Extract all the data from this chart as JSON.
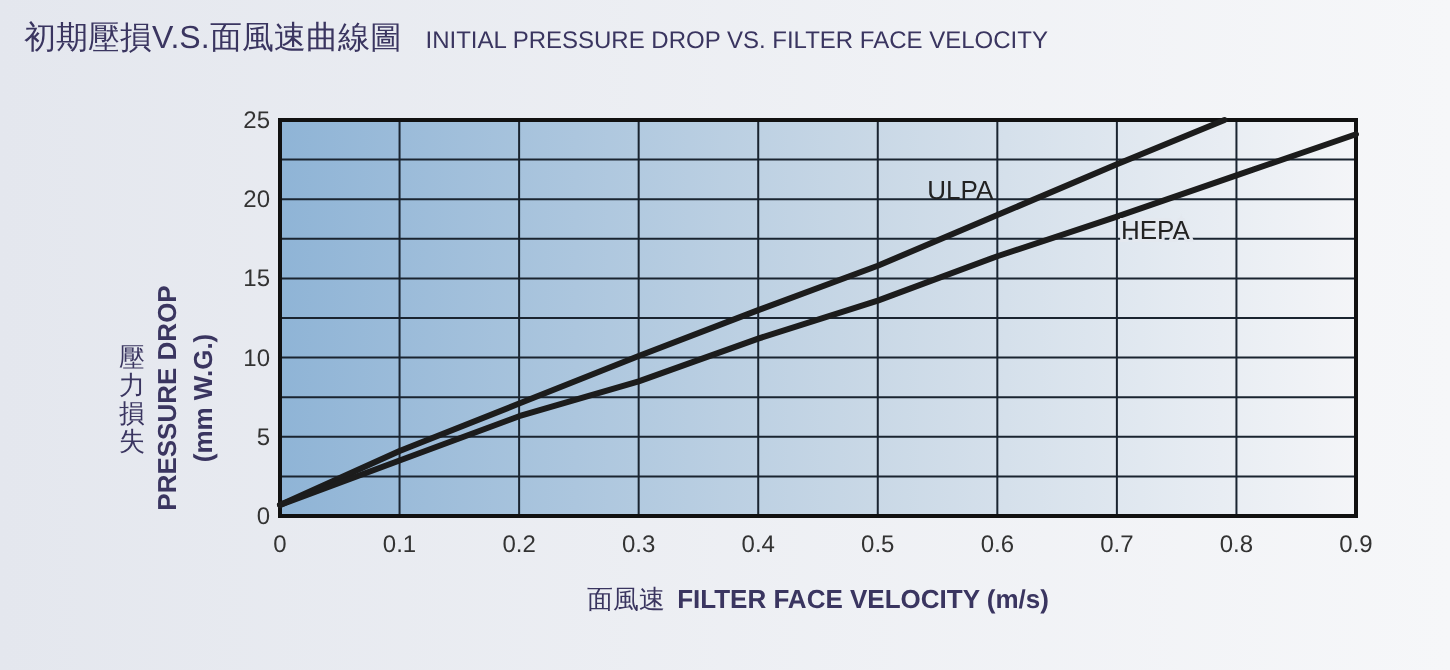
{
  "chart_data": {
    "type": "line",
    "title": "初期壓損V.S.面風速曲線圖",
    "subtitle": "INITIAL PRESSURE DROP VS. FILTER FACE VELOCITY",
    "xlabel": "面風速 FILTER FACE VELOCITY (m/s)",
    "ylabel": "壓力損失 PRESSURE DROP (mm W.G.)",
    "series": [
      {
        "name": "ULPA",
        "color": "#1c1c1c",
        "x": [
          0,
          0.1,
          0.2,
          0.3,
          0.4,
          0.5,
          0.6,
          0.7,
          0.79
        ],
        "values": [
          0.7,
          4.1,
          7.1,
          10.1,
          13,
          15.8,
          19,
          22.2,
          25
        ]
      },
      {
        "name": "HEPA",
        "color": "#1c1c1c",
        "x": [
          0,
          0.1,
          0.2,
          0.3,
          0.4,
          0.5,
          0.6,
          0.7,
          0.8,
          0.9
        ],
        "values": [
          0.7,
          3.5,
          6.3,
          8.5,
          11.2,
          13.6,
          16.4,
          18.9,
          21.5,
          24.1
        ]
      }
    ],
    "xlim": [
      0,
      0.9
    ],
    "ylim": [
      0,
      25
    ],
    "xticks": [
      0,
      0.1,
      0.2,
      0.3,
      0.4,
      0.5,
      0.6,
      0.7,
      0.8,
      0.9
    ],
    "yticks": [
      0,
      {
        "value": 2.5,
        "label": null
      },
      5,
      {
        "value": 7.5,
        "label": null
      },
      10,
      {
        "value": 12.5,
        "label": null
      },
      15,
      {
        "value": 17.5,
        "label": null
      },
      20,
      {
        "value": 22.5,
        "label": null
      },
      25
    ],
    "grid": true,
    "marker": "none",
    "line_style": "solid"
  }
}
